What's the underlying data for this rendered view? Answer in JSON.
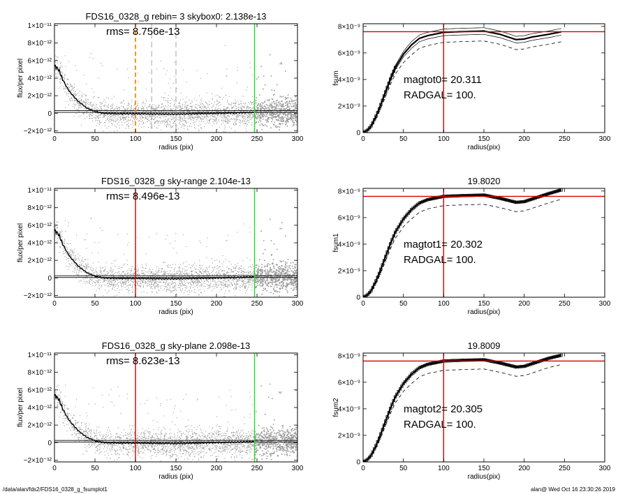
{
  "footer": {
    "path": "/data/alan/fds2/FDS16_0328_g_fsumplot1",
    "stamp": "alan@  Wed Oct 16 23:30:26 2019"
  },
  "colors": {
    "scatter": "#9a9a9a",
    "profile": "#000000",
    "orange_marker": "#ff8800",
    "red_marker": "#d40000",
    "green_marker": "#22dd22",
    "fit_marker": "#444444"
  },
  "chart_data": [
    {
      "id": "p1",
      "type": "scatter",
      "title": "FDS16_0328_g rebin= 3    skybox0:  2.138e-13",
      "annotation": "rms= 8.756e-13",
      "xlabel": "radius (pix)",
      "ylabel": "flux/per pixel",
      "xlim": [
        0,
        300
      ],
      "ylim": [
        -2.2e-12,
        1.02e-11
      ],
      "xticks": [
        0,
        50,
        100,
        150,
        200,
        250,
        300
      ],
      "yticks": [
        -2e-12,
        0,
        2e-12,
        4e-12,
        6e-12,
        8e-12,
        1e-11
      ],
      "ytick_labels": [
        "−2×10⁻¹²",
        "0",
        "2×10⁻¹²",
        "4×10⁻¹²",
        "6×10⁻¹²",
        "8×10⁻¹²",
        "1×10⁻¹¹"
      ],
      "vlines": [
        {
          "x": 100,
          "style": "orange-dashed"
        },
        {
          "x": 120,
          "style": "grey-dashed"
        },
        {
          "x": 150,
          "style": "grey-dashed"
        },
        {
          "x": 247,
          "style": "green"
        }
      ],
      "hlines": [
        3e-13,
        1e-13
      ],
      "profile_r": [
        0,
        5,
        10,
        15,
        20,
        30,
        40,
        50,
        60,
        80,
        100,
        150,
        200,
        247
      ],
      "profile_f": [
        5.4e-12,
        5e-12,
        3.9e-12,
        3e-12,
        2.3e-12,
        1.3e-12,
        6e-13,
        2e-13,
        0.0,
        -5e-14,
        -5e-14,
        -1e-13,
        0.0,
        1e-13
      ],
      "scatter_extent": [
        0,
        300
      ]
    },
    {
      "id": "p2",
      "type": "line",
      "title": "",
      "annotations": [
        "magtot0=  20.311",
        "RADGAL=    100."
      ],
      "xlabel": "radius(pix)",
      "ylabel": "fsum",
      "xlim": [
        0,
        300
      ],
      "ylim": [
        0,
        8.2e-09
      ],
      "xticks": [
        0,
        50,
        100,
        150,
        200,
        250,
        300
      ],
      "yticks": [
        0,
        2e-09,
        4e-09,
        6e-09,
        8e-09
      ],
      "ytick_labels": [
        "0",
        "2×10⁻⁹",
        "4×10⁻⁹",
        "6×10⁻⁹",
        "8×10⁻⁹"
      ],
      "vline": 100,
      "hline": 7.6e-09,
      "curve_r": [
        0,
        5,
        10,
        15,
        20,
        25,
        30,
        35,
        40,
        50,
        60,
        70,
        80,
        100,
        120,
        150,
        170,
        190,
        200,
        210,
        230,
        247
      ],
      "curve_f": [
        0,
        1.5e-10,
        5e-10,
        1.1e-09,
        1.8e-09,
        2.6e-09,
        3.4e-09,
        4.2e-09,
        4.9e-09,
        5.9e-09,
        6.6e-09,
        7.1e-09,
        7.3e-09,
        7.55e-09,
        7.6e-09,
        7.65e-09,
        7.4e-09,
        7e-09,
        7.05e-09,
        7.2e-09,
        7.4e-09,
        7.6e-09
      ],
      "band": 2.5e-10,
      "dashed_offset": -7.5e-10,
      "markers": false
    },
    {
      "id": "p3",
      "type": "scatter",
      "title": "FDS16_0328_g sky-range  2.104e-13",
      "annotation": "rms= 8.496e-13",
      "xlabel": "radius (pix)",
      "ylabel": "flux/per pixel",
      "xlim": [
        0,
        300
      ],
      "ylim": [
        -2.2e-12,
        1.02e-11
      ],
      "xticks": [
        0,
        50,
        100,
        150,
        200,
        250,
        300
      ],
      "yticks": [
        -2e-12,
        0,
        2e-12,
        4e-12,
        6e-12,
        8e-12,
        1e-11
      ],
      "ytick_labels": [
        "−2×10⁻¹²",
        "0",
        "2×10⁻¹²",
        "4×10⁻¹²",
        "6×10⁻¹²",
        "8×10⁻¹²",
        "1×10⁻¹¹"
      ],
      "vlines": [
        {
          "x": 100,
          "style": "red"
        },
        {
          "x": 247,
          "style": "green"
        }
      ],
      "hlines": [
        2.5e-13,
        5e-14
      ],
      "profile_r": [
        0,
        5,
        10,
        15,
        20,
        30,
        40,
        50,
        60,
        80,
        100,
        150,
        200,
        247
      ],
      "profile_f": [
        5.4e-12,
        5e-12,
        3.9e-12,
        3e-12,
        2.3e-12,
        1.3e-12,
        6e-13,
        2e-13,
        0.0,
        -5e-14,
        -5e-14,
        -1e-13,
        0.0,
        1e-13
      ],
      "scatter_extent": [
        0,
        300
      ]
    },
    {
      "id": "p4",
      "type": "line",
      "title": "19.8020",
      "annotations": [
        "magtot1=  20.302",
        "RADGAL=    100."
      ],
      "xlabel": "radius(pix)",
      "ylabel": "fsum1",
      "xlim": [
        0,
        300
      ],
      "ylim": [
        0,
        8.2e-09
      ],
      "xticks": [
        0,
        50,
        100,
        150,
        200,
        250,
        300
      ],
      "yticks": [
        0,
        2e-09,
        4e-09,
        6e-09,
        8e-09
      ],
      "ytick_labels": [
        "0",
        "2×10⁻⁹",
        "4×10⁻⁹",
        "6×10⁻⁹",
        "8×10⁻⁹"
      ],
      "vline": 100,
      "hline": 7.6e-09,
      "curve_r": [
        0,
        5,
        10,
        15,
        20,
        25,
        30,
        35,
        40,
        50,
        60,
        70,
        80,
        100,
        120,
        150,
        170,
        190,
        200,
        210,
        230,
        247
      ],
      "curve_f": [
        0,
        1.5e-10,
        5e-10,
        1.1e-09,
        1.8e-09,
        2.6e-09,
        3.4e-09,
        4.2e-09,
        4.9e-09,
        5.9e-09,
        6.6e-09,
        7.1e-09,
        7.35e-09,
        7.6e-09,
        7.65e-09,
        7.7e-09,
        7.45e-09,
        7.15e-09,
        7.2e-09,
        7.4e-09,
        7.8e-09,
        8.1e-09
      ],
      "band": 0,
      "dashed_offset": -7e-10,
      "markers": true
    },
    {
      "id": "p5",
      "type": "scatter",
      "title": "FDS16_0328_g sky-plane  2.098e-13",
      "annotation": "rms= 8.623e-13",
      "xlabel": "radius (pix)",
      "ylabel": "flux/per pixel",
      "xlim": [
        0,
        300
      ],
      "ylim": [
        -2.2e-12,
        1.02e-11
      ],
      "xticks": [
        0,
        50,
        100,
        150,
        200,
        250,
        300
      ],
      "yticks": [
        -2e-12,
        0,
        2e-12,
        4e-12,
        6e-12,
        8e-12,
        1e-11
      ],
      "ytick_labels": [
        "−2×10⁻¹²",
        "0",
        "2×10⁻¹²",
        "4×10⁻¹²",
        "6×10⁻¹²",
        "8×10⁻¹²",
        "1×10⁻¹¹"
      ],
      "vlines": [
        {
          "x": 100,
          "style": "red"
        },
        {
          "x": 247,
          "style": "green"
        }
      ],
      "hlines": [
        2.5e-13,
        5e-14
      ],
      "profile_r": [
        0,
        5,
        10,
        15,
        20,
        30,
        40,
        50,
        60,
        80,
        100,
        150,
        200,
        247
      ],
      "profile_f": [
        5.4e-12,
        5e-12,
        3.9e-12,
        3e-12,
        2.3e-12,
        1.3e-12,
        6e-13,
        2e-13,
        0.0,
        -5e-14,
        -5e-14,
        -1e-13,
        0.0,
        1e-13
      ],
      "scatter_extent": [
        0,
        300
      ]
    },
    {
      "id": "p6",
      "type": "line",
      "title": "19.8009",
      "annotations": [
        "magtot2=  20.305",
        "RADGAL=    100."
      ],
      "xlabel": "radius(pix)",
      "ylabel": "fsum2",
      "xlim": [
        0,
        300
      ],
      "ylim": [
        0,
        8.2e-09
      ],
      "xticks": [
        0,
        50,
        100,
        150,
        200,
        250,
        300
      ],
      "yticks": [
        0,
        2e-09,
        4e-09,
        6e-09,
        8e-09
      ],
      "ytick_labels": [
        "0",
        "2×10⁻⁹",
        "4×10⁻⁹",
        "6×10⁻⁹",
        "8×10⁻⁹"
      ],
      "vline": 100,
      "hline": 7.6e-09,
      "curve_r": [
        0,
        5,
        10,
        15,
        20,
        25,
        30,
        35,
        40,
        50,
        60,
        70,
        80,
        100,
        120,
        150,
        170,
        190,
        200,
        210,
        230,
        247
      ],
      "curve_f": [
        0,
        1.5e-10,
        5e-10,
        1.1e-09,
        1.8e-09,
        2.6e-09,
        3.4e-09,
        4.2e-09,
        4.9e-09,
        5.9e-09,
        6.6e-09,
        7.1e-09,
        7.35e-09,
        7.6e-09,
        7.65e-09,
        7.7e-09,
        7.45e-09,
        7.15e-09,
        7.2e-09,
        7.4e-09,
        7.8e-09,
        8.05e-09
      ],
      "band": 0,
      "dashed_offset": -7e-10,
      "markers": true
    }
  ]
}
